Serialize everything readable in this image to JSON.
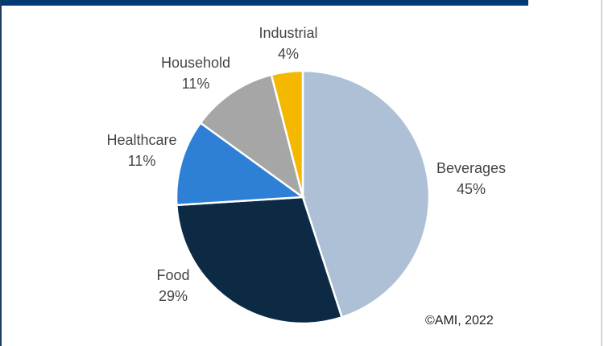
{
  "chart_data": {
    "type": "pie",
    "start_angle": "12 o'clock",
    "direction": "clockwise",
    "slices": [
      {
        "label": "Beverages",
        "value": 45,
        "value_label": "45%",
        "color": "#adc0d6"
      },
      {
        "label": "Food",
        "value": 29,
        "value_label": "29%",
        "color": "#0d2a45"
      },
      {
        "label": "Healthcare",
        "value": 11,
        "value_label": "11%",
        "color": "#2e7fd6"
      },
      {
        "label": "Household",
        "value": 11,
        "value_label": "11%",
        "color": "#a6a6a6"
      },
      {
        "label": "Industrial",
        "value": 4,
        "value_label": "4%",
        "color": "#f5b800"
      }
    ],
    "annotation": "©AMI, 2022"
  }
}
